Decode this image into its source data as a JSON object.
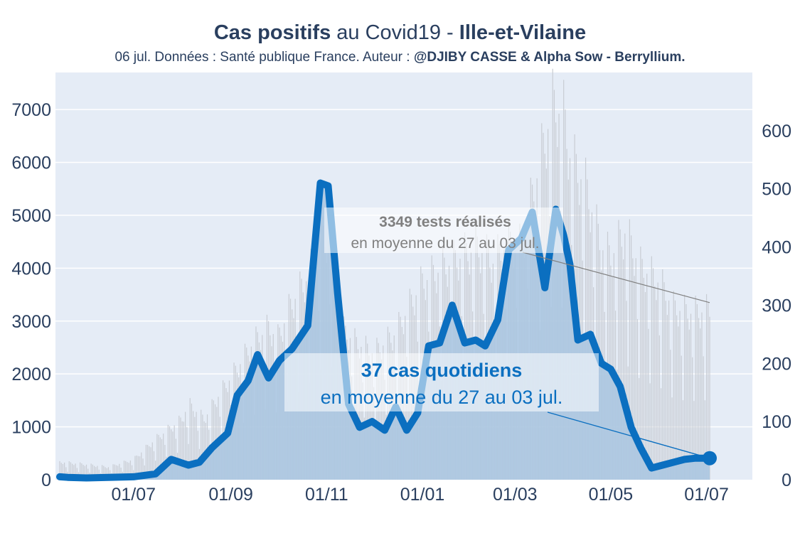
{
  "header": {
    "title_bold": "Cas positifs",
    "title_mid": " au Covid19 - ",
    "title_region": "Ille-et-Vilaine",
    "subtitle_plain": "06 jul. Données : Santé publique France. Auteur : ",
    "subtitle_bold": "@DJIBY CASSE & Alpha Sow - Berryllium."
  },
  "colors": {
    "background": "#e5ecf6",
    "cases_line": "#0b6fc0",
    "cases_fill": "#a9c6e0",
    "tests_bars": "#c8ccd3",
    "annotation_tests": "#808080",
    "annotation_cases": "#0b6fc0",
    "text": "#2a3f5f"
  },
  "chart_data": {
    "type": "line",
    "x_start_date": "2020-05-15",
    "x_end_date": "2021-07-03",
    "xaxis": {
      "ticks": [
        "01/07",
        "01/09",
        "01/11",
        "01/01",
        "01/03",
        "01/05",
        "01/07"
      ]
    },
    "yaxis_left": {
      "range": [
        0,
        7700
      ],
      "ticks": [
        "0",
        "1000",
        "2000",
        "3000",
        "4000",
        "5000",
        "6000",
        "7000"
      ]
    },
    "yaxis_right": {
      "range": [
        0,
        700
      ],
      "ticks": [
        "0",
        "100",
        "200",
        "300",
        "400",
        "500",
        "600"
      ]
    },
    "series": [
      {
        "axis": "left",
        "style": "bars",
        "x": [
          "2020-05-15",
          "2020-06-01",
          "2020-06-15",
          "2020-07-01",
          "2020-07-15",
          "2020-08-01",
          "2020-08-05",
          "2020-08-15",
          "2020-08-25",
          "2020-09-05",
          "2020-09-15",
          "2020-09-25",
          "2020-10-01",
          "2020-10-10",
          "2020-10-20",
          "2020-10-30",
          "2020-11-05",
          "2020-11-10",
          "2020-11-20",
          "2020-12-01",
          "2020-12-15",
          "2020-12-25",
          "2021-01-01",
          "2021-01-05",
          "2021-01-15",
          "2021-01-25",
          "2021-02-05",
          "2021-02-15",
          "2021-02-25",
          "2021-03-05",
          "2021-03-15",
          "2021-03-25",
          "2021-04-01",
          "2021-04-05",
          "2021-04-15",
          "2021-04-25",
          "2021-05-01",
          "2021-05-10",
          "2021-05-20",
          "2021-06-01",
          "2021-06-10",
          "2021-06-20",
          "2021-07-03"
        ],
        "y": [
          350,
          300,
          250,
          400,
          800,
          1200,
          1500,
          1200,
          1700,
          2200,
          2700,
          3000,
          2800,
          3500,
          4000,
          4800,
          4700,
          3000,
          2700,
          2500,
          2900,
          3500,
          3900,
          4000,
          4200,
          4400,
          4600,
          4300,
          4700,
          4600,
          6000,
          7400,
          7200,
          6400,
          5800,
          4600,
          4400,
          4900,
          4200,
          3900,
          3400,
          3300,
          3349
        ]
      },
      {
        "axis": "right",
        "style": "line",
        "x": [
          "2020-05-15",
          "2020-05-20",
          "2020-06-01",
          "2020-06-15",
          "2020-07-01",
          "2020-07-15",
          "2020-07-25",
          "2020-08-05",
          "2020-08-12",
          "2020-08-20",
          "2020-08-30",
          "2020-09-05",
          "2020-09-12",
          "2020-09-18",
          "2020-09-25",
          "2020-10-02",
          "2020-10-10",
          "2020-10-20",
          "2020-10-28",
          "2020-11-02",
          "2020-11-08",
          "2020-11-15",
          "2020-11-22",
          "2020-11-30",
          "2020-12-08",
          "2020-12-15",
          "2020-12-22",
          "2020-12-29",
          "2021-01-05",
          "2021-01-12",
          "2021-01-20",
          "2021-01-28",
          "2021-02-04",
          "2021-02-10",
          "2021-02-18",
          "2021-02-25",
          "2021-03-05",
          "2021-03-12",
          "2021-03-20",
          "2021-03-27",
          "2021-04-01",
          "2021-04-05",
          "2021-04-10",
          "2021-04-18",
          "2021-04-25",
          "2021-05-01",
          "2021-05-07",
          "2021-05-14",
          "2021-05-20",
          "2021-05-27",
          "2021-06-03",
          "2021-06-10",
          "2021-06-17",
          "2021-06-24",
          "2021-07-03"
        ],
        "y": [
          5,
          4,
          3,
          4,
          5,
          10,
          35,
          25,
          30,
          55,
          80,
          145,
          170,
          215,
          175,
          205,
          225,
          265,
          510,
          505,
          320,
          130,
          90,
          100,
          85,
          125,
          85,
          115,
          230,
          235,
          300,
          235,
          240,
          230,
          275,
          395,
          415,
          460,
          330,
          465,
          420,
          370,
          240,
          250,
          200,
          190,
          160,
          90,
          55,
          20,
          25,
          30,
          35,
          37,
          37
        ]
      }
    ],
    "annotations": [
      {
        "value": "3349 tests réalisés",
        "subtext": "en moyenne du 27 au 03 jul.",
        "axis": "left",
        "x": "2021-07-03",
        "y": 3349
      },
      {
        "value": "37 cas quotidiens",
        "subtext": "en moyenne du 27 au 03 jul.",
        "axis": "right",
        "x": "2021-07-03",
        "y": 37
      }
    ]
  }
}
